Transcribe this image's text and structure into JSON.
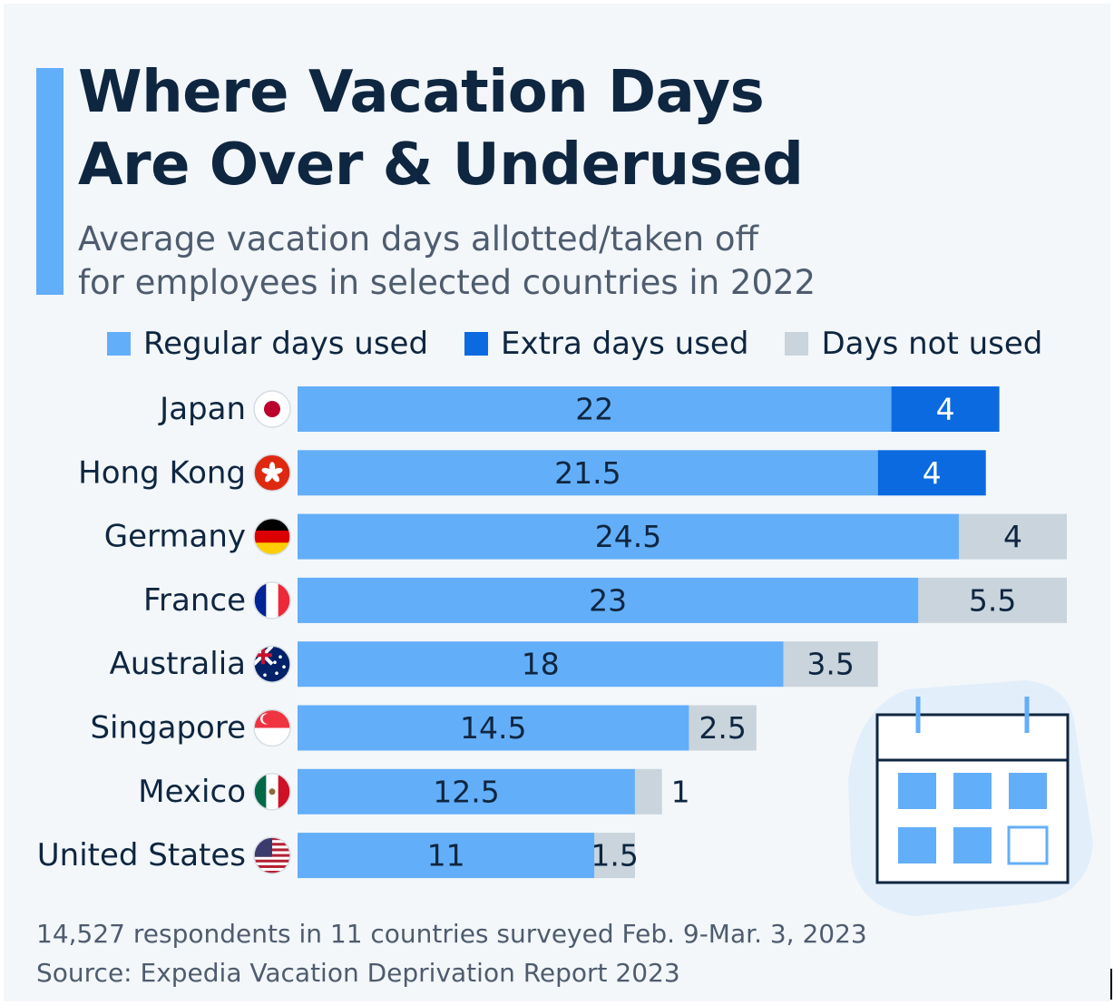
{
  "header": {
    "title_line1": "Where Vacation Days",
    "title_line2": "Are Over & Underused",
    "subtitle_line1": "Average vacation days allotted/taken off",
    "subtitle_line2": "for employees in selected countries in 2022"
  },
  "colors": {
    "regular": "#63aef8",
    "extra": "#0b6ae0",
    "not_used": "#c9d4dc",
    "accent": "#63aef8",
    "title": "#0f2640"
  },
  "chart_data": {
    "type": "bar",
    "orientation": "horizontal",
    "stacked": true,
    "categories": [
      "Japan",
      "Hong Kong",
      "Germany",
      "France",
      "Australia",
      "Singapore",
      "Mexico",
      "United States"
    ],
    "flag_icons": [
      "japan-flag-icon",
      "hong-kong-flag-icon",
      "germany-flag-icon",
      "france-flag-icon",
      "australia-flag-icon",
      "singapore-flag-icon",
      "mexico-flag-icon",
      "united-states-flag-icon"
    ],
    "series": [
      {
        "name": "Regular days used",
        "values": [
          22,
          21.5,
          24.5,
          23,
          18,
          14.5,
          12.5,
          11
        ]
      },
      {
        "name": "Extra days used",
        "values": [
          4,
          4,
          0,
          0,
          0,
          0,
          0,
          0
        ]
      },
      {
        "name": "Days not used",
        "values": [
          0,
          0,
          4,
          5.5,
          3.5,
          2.5,
          1,
          1.5
        ]
      }
    ],
    "labels": {
      "regular": [
        "22",
        "21.5",
        "24.5",
        "23",
        "18",
        "14.5",
        "12.5",
        "11"
      ],
      "extra": [
        "4",
        "4",
        "",
        "",
        "",
        "",
        "",
        ""
      ],
      "not_used": [
        "",
        "",
        "4",
        "5.5",
        "3.5",
        "2.5",
        "1",
        "1.5"
      ]
    },
    "xlim": [
      0,
      28.5
    ],
    "grid": false,
    "legend_position": "top"
  },
  "footer": {
    "note": "14,527 respondents in 11 countries surveyed Feb. 9-Mar. 3, 2023",
    "source": "Source: Expedia Vacation Deprivation Report 2023"
  }
}
